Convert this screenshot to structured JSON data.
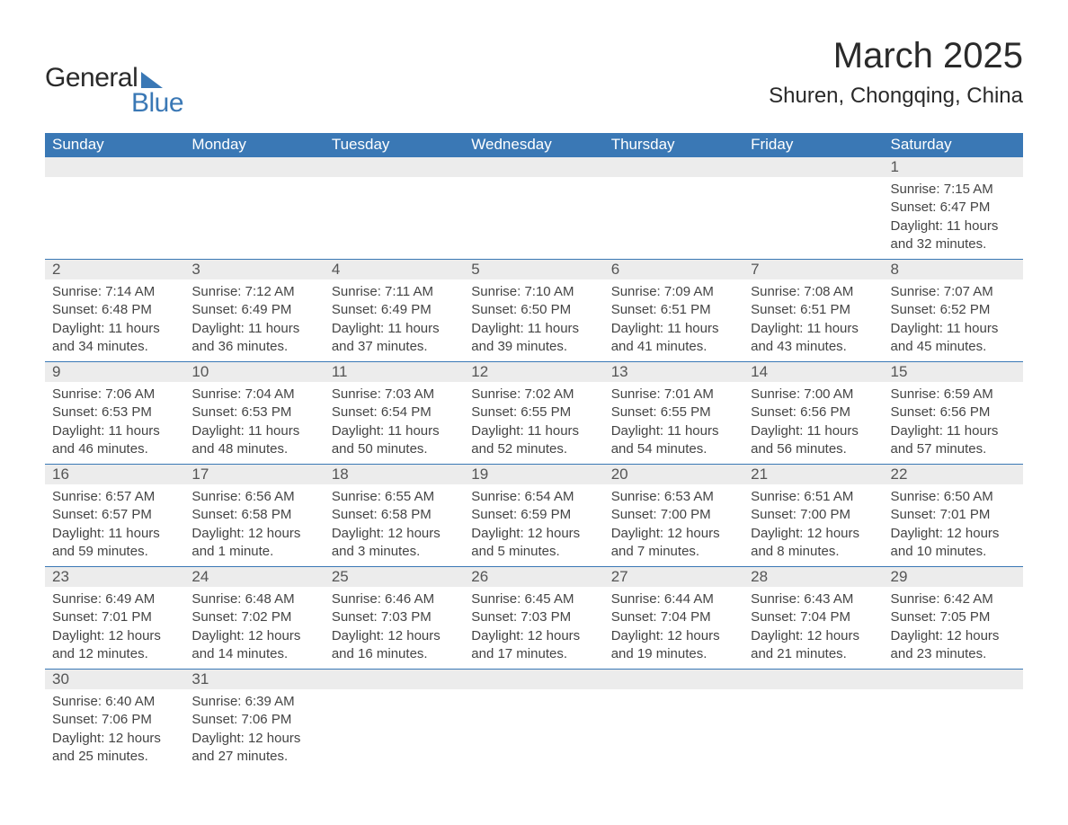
{
  "logo": {
    "text1": "General",
    "text2": "Blue"
  },
  "title": "March 2025",
  "location": "Shuren, Chongqing, China",
  "columns": [
    "Sunday",
    "Monday",
    "Tuesday",
    "Wednesday",
    "Thursday",
    "Friday",
    "Saturday"
  ],
  "colors": {
    "header_bg": "#3a78b5",
    "header_text": "#ffffff",
    "daynum_bg": "#ececec",
    "border": "#3a78b5",
    "body_text": "#444444",
    "title_text": "#2a2a2a"
  },
  "weeks": [
    [
      null,
      null,
      null,
      null,
      null,
      null,
      {
        "n": "1",
        "sunrise": "Sunrise: 7:15 AM",
        "sunset": "Sunset: 6:47 PM",
        "dl1": "Daylight: 11 hours",
        "dl2": "and 32 minutes."
      }
    ],
    [
      {
        "n": "2",
        "sunrise": "Sunrise: 7:14 AM",
        "sunset": "Sunset: 6:48 PM",
        "dl1": "Daylight: 11 hours",
        "dl2": "and 34 minutes."
      },
      {
        "n": "3",
        "sunrise": "Sunrise: 7:12 AM",
        "sunset": "Sunset: 6:49 PM",
        "dl1": "Daylight: 11 hours",
        "dl2": "and 36 minutes."
      },
      {
        "n": "4",
        "sunrise": "Sunrise: 7:11 AM",
        "sunset": "Sunset: 6:49 PM",
        "dl1": "Daylight: 11 hours",
        "dl2": "and 37 minutes."
      },
      {
        "n": "5",
        "sunrise": "Sunrise: 7:10 AM",
        "sunset": "Sunset: 6:50 PM",
        "dl1": "Daylight: 11 hours",
        "dl2": "and 39 minutes."
      },
      {
        "n": "6",
        "sunrise": "Sunrise: 7:09 AM",
        "sunset": "Sunset: 6:51 PM",
        "dl1": "Daylight: 11 hours",
        "dl2": "and 41 minutes."
      },
      {
        "n": "7",
        "sunrise": "Sunrise: 7:08 AM",
        "sunset": "Sunset: 6:51 PM",
        "dl1": "Daylight: 11 hours",
        "dl2": "and 43 minutes."
      },
      {
        "n": "8",
        "sunrise": "Sunrise: 7:07 AM",
        "sunset": "Sunset: 6:52 PM",
        "dl1": "Daylight: 11 hours",
        "dl2": "and 45 minutes."
      }
    ],
    [
      {
        "n": "9",
        "sunrise": "Sunrise: 7:06 AM",
        "sunset": "Sunset: 6:53 PM",
        "dl1": "Daylight: 11 hours",
        "dl2": "and 46 minutes."
      },
      {
        "n": "10",
        "sunrise": "Sunrise: 7:04 AM",
        "sunset": "Sunset: 6:53 PM",
        "dl1": "Daylight: 11 hours",
        "dl2": "and 48 minutes."
      },
      {
        "n": "11",
        "sunrise": "Sunrise: 7:03 AM",
        "sunset": "Sunset: 6:54 PM",
        "dl1": "Daylight: 11 hours",
        "dl2": "and 50 minutes."
      },
      {
        "n": "12",
        "sunrise": "Sunrise: 7:02 AM",
        "sunset": "Sunset: 6:55 PM",
        "dl1": "Daylight: 11 hours",
        "dl2": "and 52 minutes."
      },
      {
        "n": "13",
        "sunrise": "Sunrise: 7:01 AM",
        "sunset": "Sunset: 6:55 PM",
        "dl1": "Daylight: 11 hours",
        "dl2": "and 54 minutes."
      },
      {
        "n": "14",
        "sunrise": "Sunrise: 7:00 AM",
        "sunset": "Sunset: 6:56 PM",
        "dl1": "Daylight: 11 hours",
        "dl2": "and 56 minutes."
      },
      {
        "n": "15",
        "sunrise": "Sunrise: 6:59 AM",
        "sunset": "Sunset: 6:56 PM",
        "dl1": "Daylight: 11 hours",
        "dl2": "and 57 minutes."
      }
    ],
    [
      {
        "n": "16",
        "sunrise": "Sunrise: 6:57 AM",
        "sunset": "Sunset: 6:57 PM",
        "dl1": "Daylight: 11 hours",
        "dl2": "and 59 minutes."
      },
      {
        "n": "17",
        "sunrise": "Sunrise: 6:56 AM",
        "sunset": "Sunset: 6:58 PM",
        "dl1": "Daylight: 12 hours",
        "dl2": "and 1 minute."
      },
      {
        "n": "18",
        "sunrise": "Sunrise: 6:55 AM",
        "sunset": "Sunset: 6:58 PM",
        "dl1": "Daylight: 12 hours",
        "dl2": "and 3 minutes."
      },
      {
        "n": "19",
        "sunrise": "Sunrise: 6:54 AM",
        "sunset": "Sunset: 6:59 PM",
        "dl1": "Daylight: 12 hours",
        "dl2": "and 5 minutes."
      },
      {
        "n": "20",
        "sunrise": "Sunrise: 6:53 AM",
        "sunset": "Sunset: 7:00 PM",
        "dl1": "Daylight: 12 hours",
        "dl2": "and 7 minutes."
      },
      {
        "n": "21",
        "sunrise": "Sunrise: 6:51 AM",
        "sunset": "Sunset: 7:00 PM",
        "dl1": "Daylight: 12 hours",
        "dl2": "and 8 minutes."
      },
      {
        "n": "22",
        "sunrise": "Sunrise: 6:50 AM",
        "sunset": "Sunset: 7:01 PM",
        "dl1": "Daylight: 12 hours",
        "dl2": "and 10 minutes."
      }
    ],
    [
      {
        "n": "23",
        "sunrise": "Sunrise: 6:49 AM",
        "sunset": "Sunset: 7:01 PM",
        "dl1": "Daylight: 12 hours",
        "dl2": "and 12 minutes."
      },
      {
        "n": "24",
        "sunrise": "Sunrise: 6:48 AM",
        "sunset": "Sunset: 7:02 PM",
        "dl1": "Daylight: 12 hours",
        "dl2": "and 14 minutes."
      },
      {
        "n": "25",
        "sunrise": "Sunrise: 6:46 AM",
        "sunset": "Sunset: 7:03 PM",
        "dl1": "Daylight: 12 hours",
        "dl2": "and 16 minutes."
      },
      {
        "n": "26",
        "sunrise": "Sunrise: 6:45 AM",
        "sunset": "Sunset: 7:03 PM",
        "dl1": "Daylight: 12 hours",
        "dl2": "and 17 minutes."
      },
      {
        "n": "27",
        "sunrise": "Sunrise: 6:44 AM",
        "sunset": "Sunset: 7:04 PM",
        "dl1": "Daylight: 12 hours",
        "dl2": "and 19 minutes."
      },
      {
        "n": "28",
        "sunrise": "Sunrise: 6:43 AM",
        "sunset": "Sunset: 7:04 PM",
        "dl1": "Daylight: 12 hours",
        "dl2": "and 21 minutes."
      },
      {
        "n": "29",
        "sunrise": "Sunrise: 6:42 AM",
        "sunset": "Sunset: 7:05 PM",
        "dl1": "Daylight: 12 hours",
        "dl2": "and 23 minutes."
      }
    ],
    [
      {
        "n": "30",
        "sunrise": "Sunrise: 6:40 AM",
        "sunset": "Sunset: 7:06 PM",
        "dl1": "Daylight: 12 hours",
        "dl2": "and 25 minutes."
      },
      {
        "n": "31",
        "sunrise": "Sunrise: 6:39 AM",
        "sunset": "Sunset: 7:06 PM",
        "dl1": "Daylight: 12 hours",
        "dl2": "and 27 minutes."
      },
      null,
      null,
      null,
      null,
      null
    ]
  ]
}
